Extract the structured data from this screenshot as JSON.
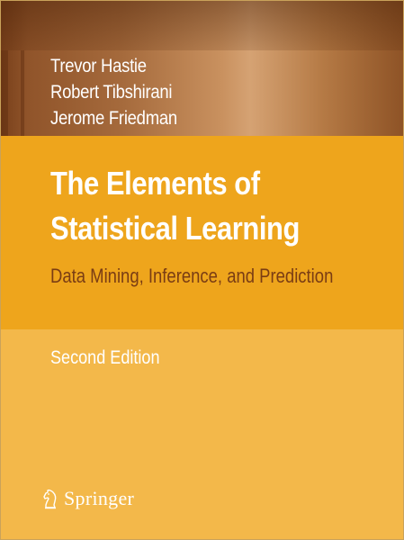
{
  "book": {
    "authors": [
      "Trevor Hastie",
      "Robert Tibshirani",
      "Jerome Friedman"
    ],
    "title_line1": "The Elements of",
    "title_line2": "Statistical Learning",
    "subtitle": "Data Mining, Inference, and Prediction",
    "edition": "Second Edition",
    "publisher": "Springer"
  },
  "colors": {
    "top_band": "#a56a3c",
    "title_block": "#eea51c",
    "lower_block": "#f3b84a",
    "subtitle_text": "#7a3d14",
    "title_text": "#ffffff"
  },
  "icons": {
    "publisher_logo": "springer-chess-knight-icon"
  }
}
